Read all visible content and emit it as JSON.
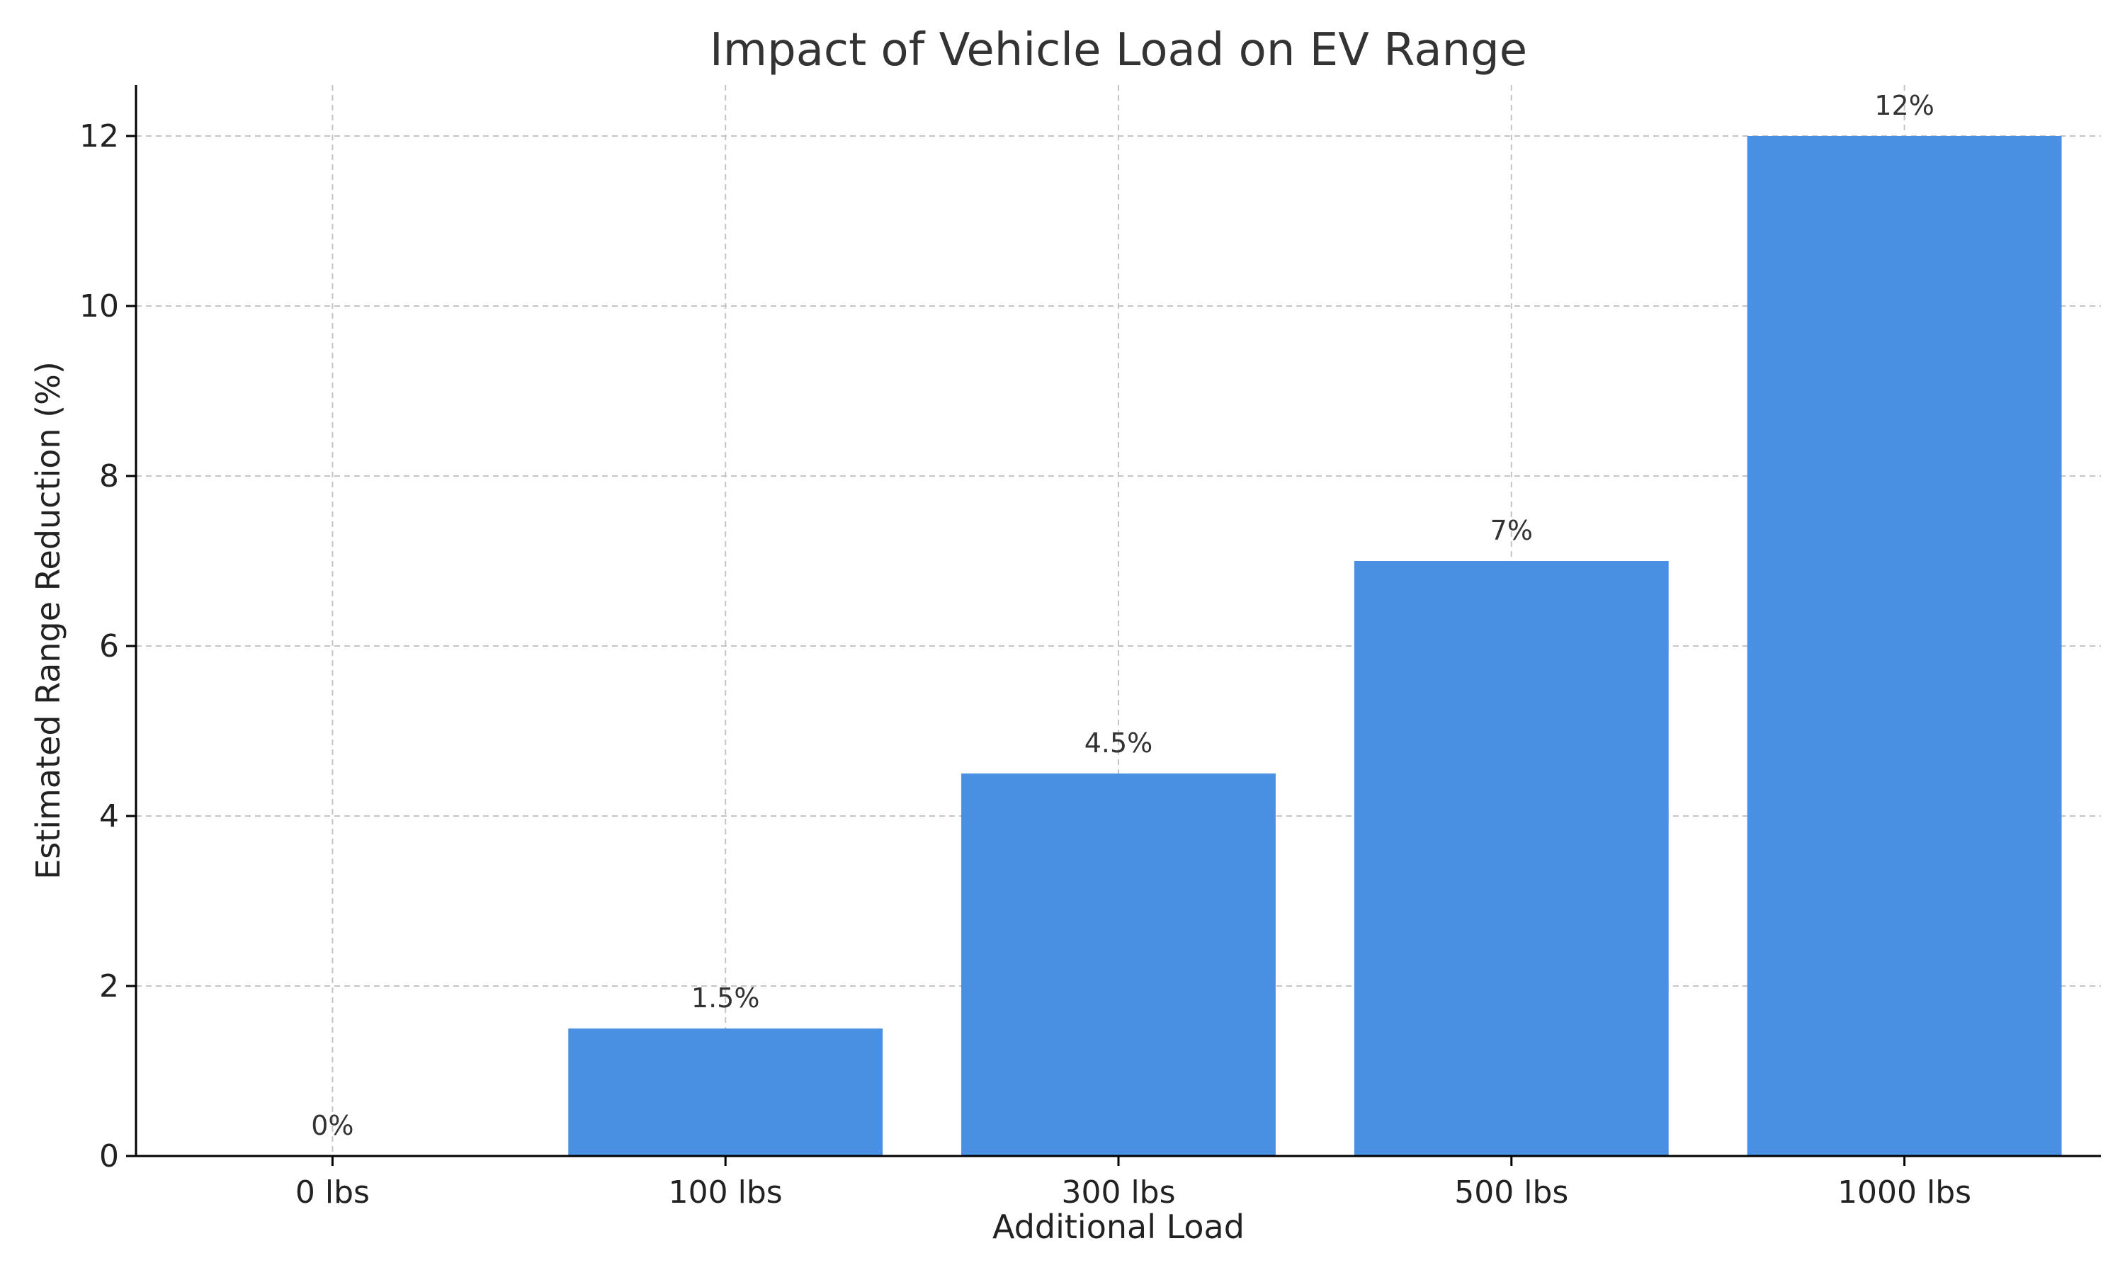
{
  "chart_data": {
    "type": "bar",
    "title": "Impact of Vehicle Load on EV Range",
    "xlabel": "Additional Load",
    "ylabel": "Estimated Range Reduction (%)",
    "categories": [
      "0 lbs",
      "100 lbs",
      "300 lbs",
      "500 lbs",
      "1000 lbs"
    ],
    "values": [
      0,
      1.5,
      4.5,
      7,
      12
    ],
    "data_labels": [
      "0%",
      "1.5%",
      "4.5%",
      "7%",
      "12%"
    ],
    "yticks": [
      0,
      2,
      4,
      6,
      8,
      10,
      12
    ],
    "ylim": [
      0,
      12.6
    ],
    "grid": true,
    "bar_color": "#4a90e2"
  }
}
